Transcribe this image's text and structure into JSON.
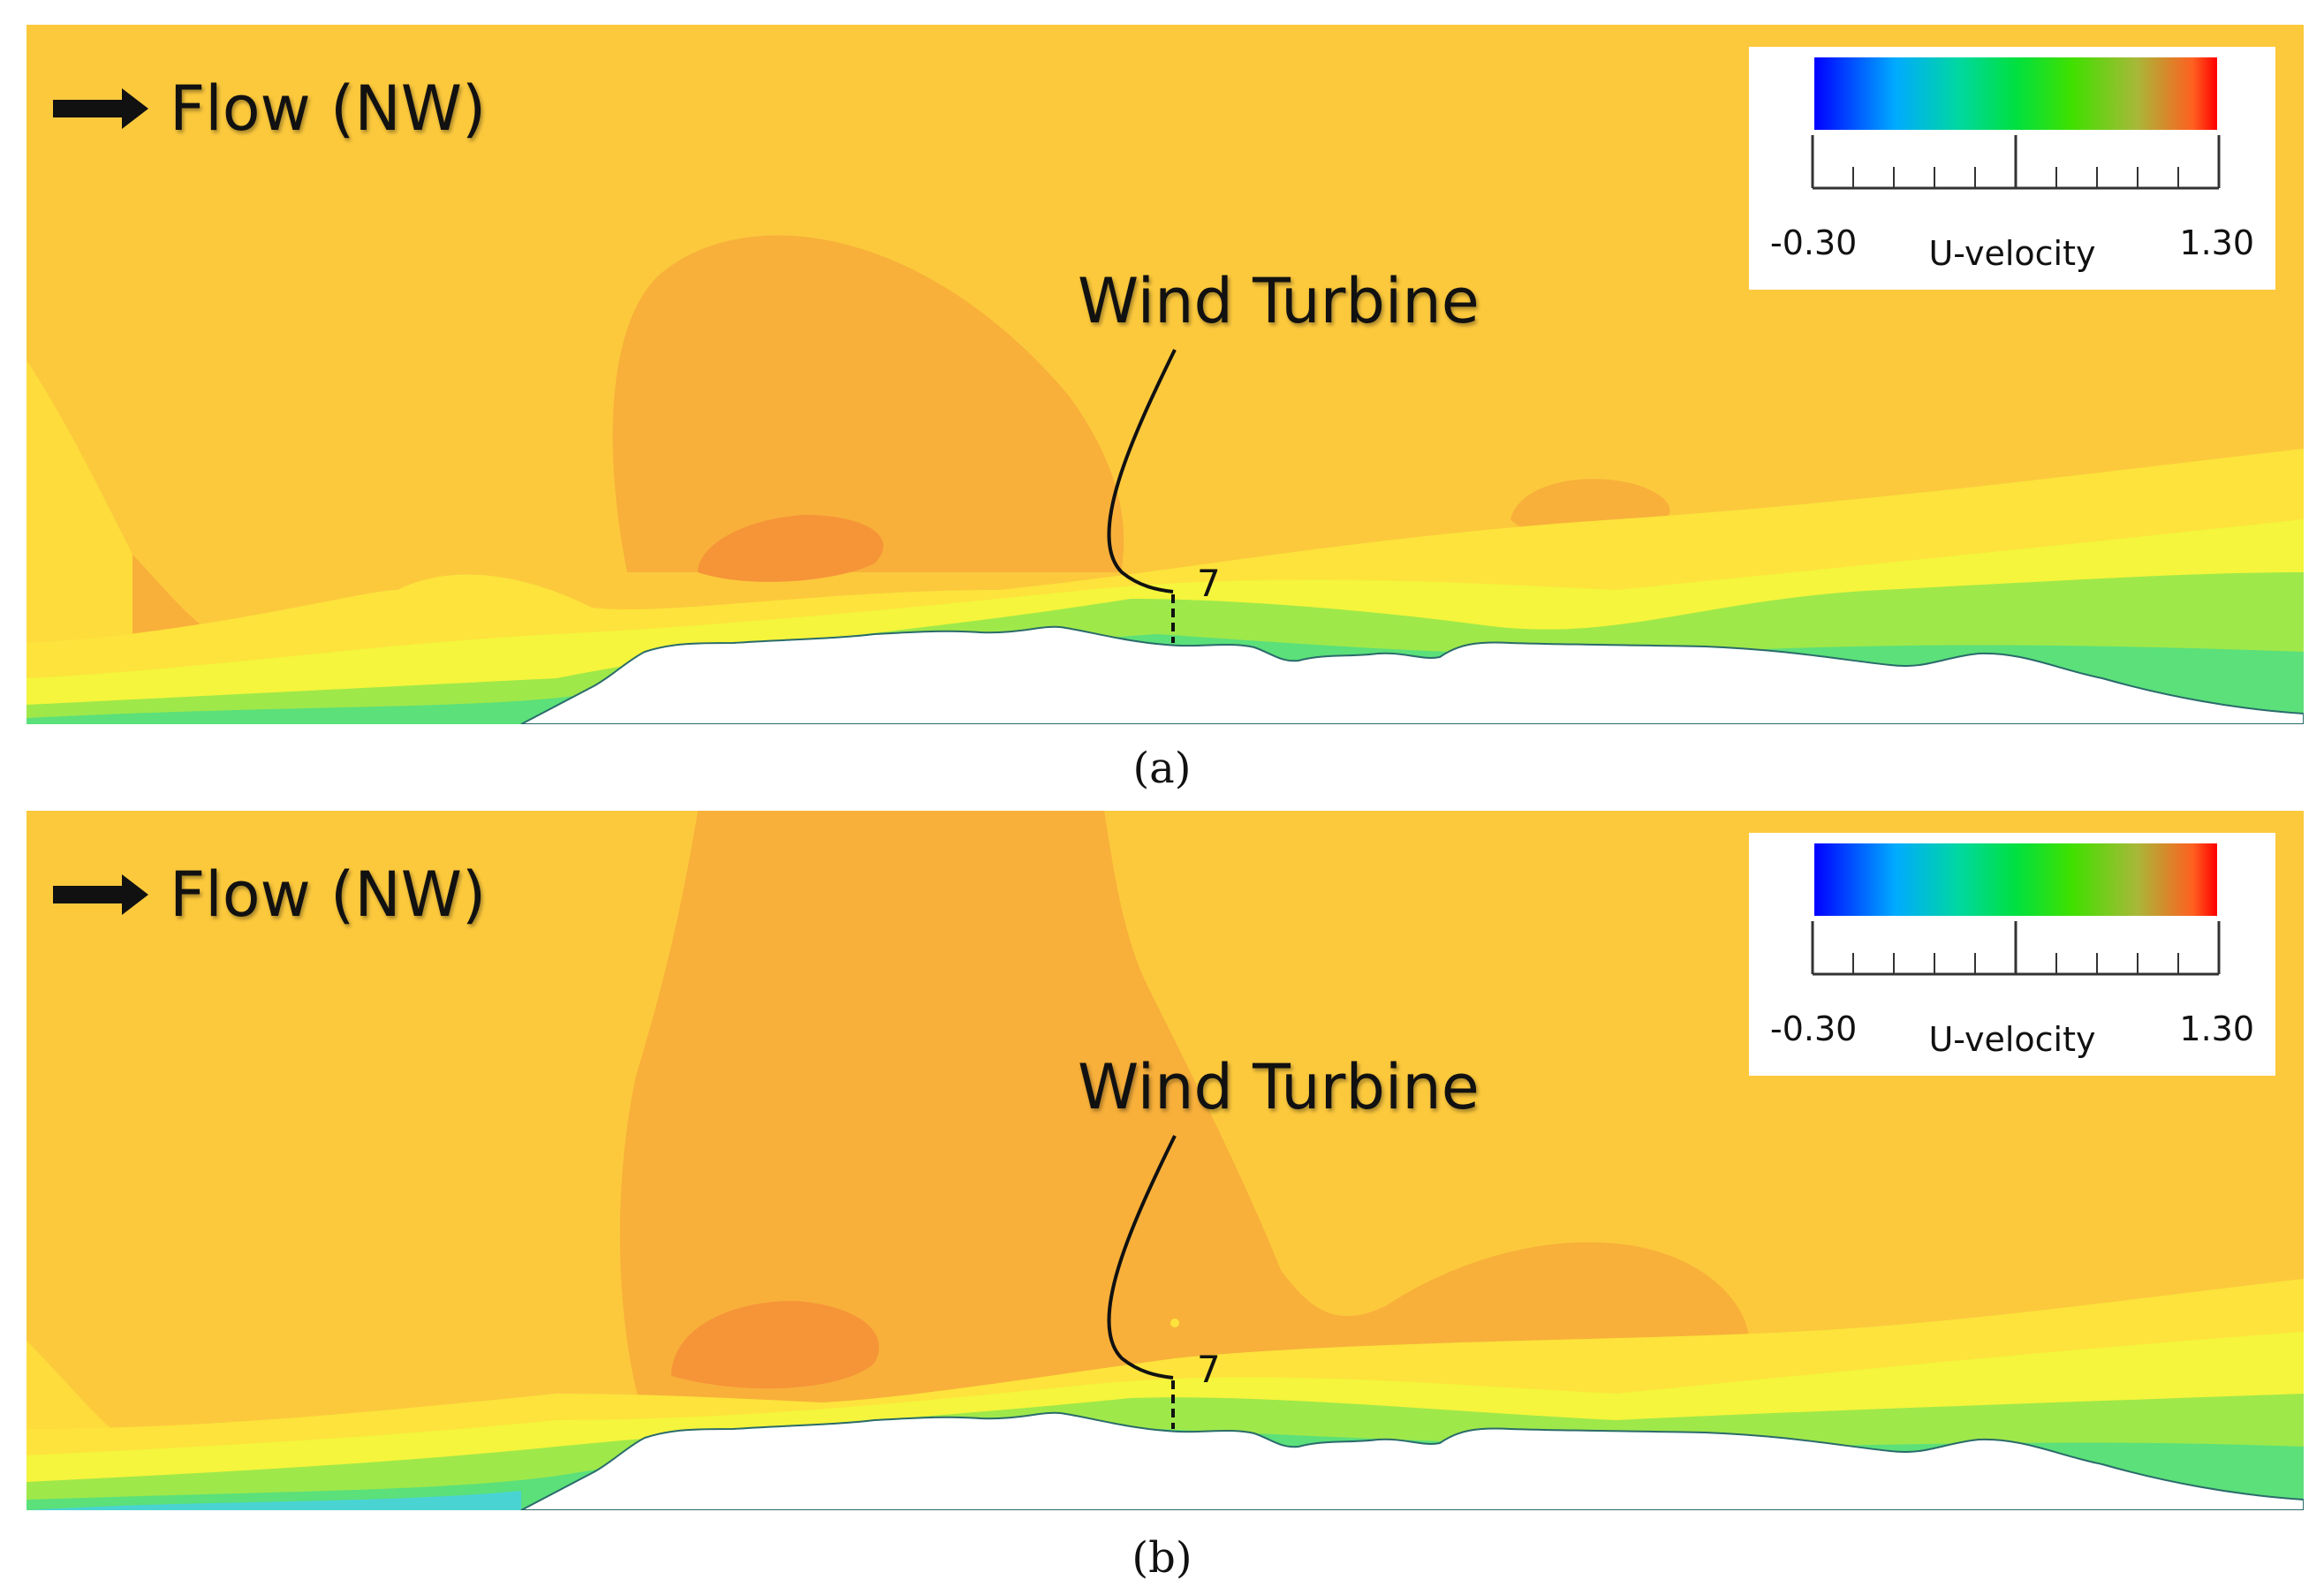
{
  "panels": [
    {
      "id": "a",
      "flow_label": "Flow (NW)",
      "turbine_label": "Wind Turbine",
      "turbine_id": "7",
      "caption": "(a)",
      "legend": {
        "min": "-0.30",
        "title": "U-velocity",
        "max": "1.30"
      }
    },
    {
      "id": "b",
      "flow_label": "Flow (NW)",
      "turbine_label": "Wind Turbine",
      "turbine_id": "7",
      "caption": "(b)",
      "legend": {
        "min": "-0.30",
        "title": "U-velocity",
        "max": "1.30"
      }
    }
  ],
  "colors": {
    "free_stream": "#fcc93d",
    "wake": "#f8af3a",
    "strong_wake": "#f69438",
    "shear_yellow": "#fdf33b",
    "shear_green": "#5be07a",
    "near_ground": "#4ad3d3",
    "ground": "#ffffff"
  }
}
